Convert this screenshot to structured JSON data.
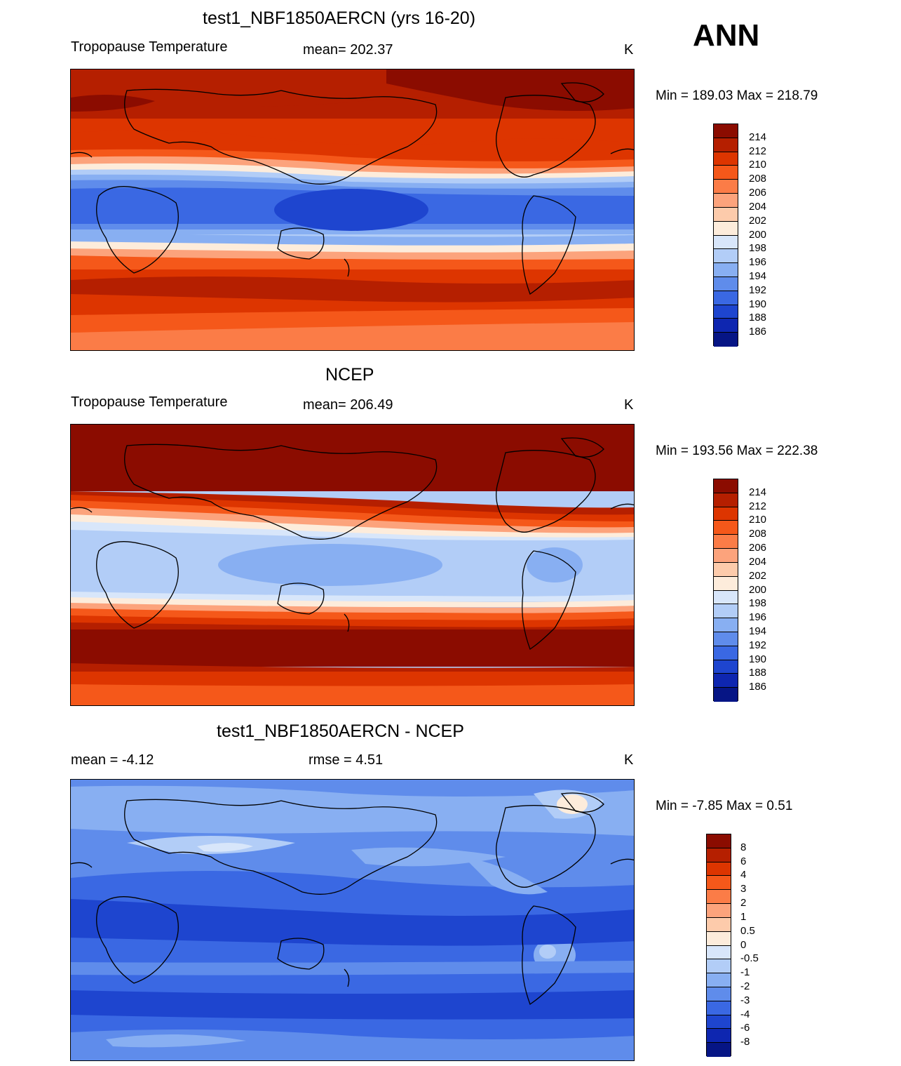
{
  "ann_label": "ANN",
  "panels": [
    {
      "id": "test",
      "title": "test1_NBF1850AERCN (yrs 16-20)",
      "left_label": "Tropopause Temperature",
      "center_label": "mean= 202.37",
      "units": "K",
      "minmax": "Min = 189.03 Max = 218.79",
      "legend_labels": [
        "214",
        "212",
        "210",
        "208",
        "206",
        "204",
        "202",
        "200",
        "198",
        "196",
        "194",
        "192",
        "190",
        "188",
        "186"
      ],
      "legend_colors": [
        "#8b0c00",
        "#b51f00",
        "#dd3500",
        "#f5581a",
        "#fb7c47",
        "#fca37c",
        "#fdcbab",
        "#fdecdb",
        "#d8e6fa",
        "#b2cdf7",
        "#88aff2",
        "#5f8ceb",
        "#3a68e3",
        "#1e45cf",
        "#0e26b0",
        "#061585"
      ]
    },
    {
      "id": "obs",
      "title": "NCEP",
      "left_label": "Tropopause Temperature",
      "center_label": "mean= 206.49",
      "units": "K",
      "minmax": "Min = 193.56 Max = 222.38",
      "legend_labels": [
        "214",
        "212",
        "210",
        "208",
        "206",
        "204",
        "202",
        "200",
        "198",
        "196",
        "194",
        "192",
        "190",
        "188",
        "186"
      ],
      "legend_colors": [
        "#8b0c00",
        "#b51f00",
        "#dd3500",
        "#f5581a",
        "#fb7c47",
        "#fca37c",
        "#fdcbab",
        "#fdecdb",
        "#d8e6fa",
        "#b2cdf7",
        "#88aff2",
        "#5f8ceb",
        "#3a68e3",
        "#1e45cf",
        "#0e26b0",
        "#061585"
      ]
    },
    {
      "id": "diff",
      "title": "test1_NBF1850AERCN - NCEP",
      "left_label": "mean =  -4.12",
      "center_label": "rmse =   4.51",
      "units": "K",
      "minmax": "Min =  -7.85 Max =   0.51",
      "legend_labels": [
        "8",
        "6",
        "4",
        "3",
        "2",
        "1",
        "0.5",
        "0",
        "-0.5",
        "-1",
        "-2",
        "-3",
        "-4",
        "-6",
        "-8"
      ],
      "legend_colors": [
        "#8b0c00",
        "#b51f00",
        "#dd3500",
        "#f5581a",
        "#fb7c47",
        "#fca37c",
        "#fdcbab",
        "#fdecdb",
        "#d8e6fa",
        "#b2cdf7",
        "#88aff2",
        "#5f8ceb",
        "#3a68e3",
        "#1e45cf",
        "#0e26b0",
        "#061585"
      ]
    }
  ]
}
